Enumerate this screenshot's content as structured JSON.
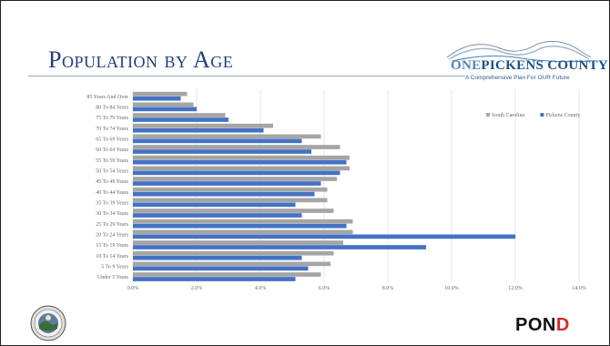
{
  "slide": {
    "title": "Population by Age"
  },
  "logo": {
    "name_one": "ONE",
    "name_rest": "PICKENS COUNTY",
    "tagline": "A Comprehensive Plan For OUR Future"
  },
  "footer": {
    "brand_main": "PON",
    "brand_accent": "D"
  },
  "colors": {
    "south_carolina": "#a5a5a5",
    "pickens_county": "#4472c4",
    "title": "#1f3f7a"
  },
  "chart_data": {
    "type": "bar",
    "orientation": "horizontal",
    "categories": [
      "85 Years And Over",
      "80 To 84 Years",
      "75 To 79 Years",
      "70 To 74 Years",
      "65 To 69 Years",
      "60 To 64 Years",
      "55 To 59 Years",
      "50 To 54 Years",
      "45 To 49 Years",
      "40 To 44 Years",
      "35 To 39 Years",
      "30 To 34 Years",
      "25 To 29 Years",
      "20 To 24 Years",
      "15 To 19 Years",
      "10 To 14 Years",
      "5 To 9 Years",
      "Under 5 Years"
    ],
    "series": [
      {
        "name": "South Carolina",
        "color": "#a5a5a5",
        "values": [
          1.7,
          1.9,
          2.9,
          4.4,
          5.9,
          6.5,
          6.8,
          6.8,
          6.4,
          6.1,
          6.1,
          6.3,
          6.9,
          6.9,
          6.6,
          6.3,
          6.2,
          5.9
        ]
      },
      {
        "name": "Pickens County",
        "color": "#4472c4",
        "values": [
          1.5,
          2.0,
          3.0,
          4.1,
          5.3,
          5.6,
          6.7,
          6.5,
          5.9,
          5.7,
          5.1,
          5.3,
          6.7,
          12.0,
          9.2,
          5.3,
          5.5,
          5.1
        ]
      }
    ],
    "xticks": [
      "0.0%",
      "2.0%",
      "4.0%",
      "6.0%",
      "8.0%",
      "10.0%",
      "12.0%",
      "14.0%"
    ],
    "xlim": [
      0,
      14
    ],
    "grid": true,
    "legend_position": "top-right"
  }
}
